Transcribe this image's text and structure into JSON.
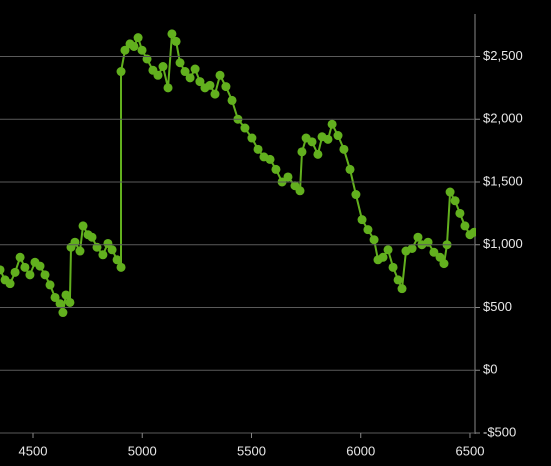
{
  "chart_data": {
    "type": "line",
    "x": [
      4349,
      4372,
      4395,
      4418,
      4441,
      4463,
      4486,
      4509,
      4532,
      4555,
      4578,
      4601,
      4624,
      4637,
      4651,
      4669,
      4674,
      4692,
      4715,
      4729,
      4752,
      4770,
      4793,
      4820,
      4843,
      4862,
      4885,
      4903,
      4903,
      4921,
      4944,
      4962,
      4981,
      4999,
      5022,
      5049,
      5072,
      5095,
      5118,
      5136,
      5155,
      5173,
      5196,
      5219,
      5242,
      5264,
      5287,
      5310,
      5333,
      5356,
      5383,
      5411,
      5438,
      5470,
      5502,
      5530,
      5557,
      5585,
      5612,
      5640,
      5667,
      5699,
      5722,
      5731,
      5750,
      5777,
      5804,
      5823,
      5850,
      5869,
      5896,
      5923,
      5951,
      5978,
      6006,
      6033,
      6061,
      6079,
      6102,
      6125,
      6148,
      6171,
      6189,
      6207,
      6235,
      6262,
      6280,
      6308,
      6335,
      6363,
      6381,
      6395,
      6409,
      6432,
      6454,
      6477,
      6500,
      6519
    ],
    "series": [
      {
        "color": "#62b01e",
        "values": [
          800,
          720,
          690,
          780,
          900,
          820,
          760,
          860,
          830,
          760,
          680,
          580,
          530,
          460,
          600,
          540,
          980,
          1020,
          950,
          1150,
          1080,
          1060,
          980,
          920,
          1010,
          960,
          880,
          820,
          2380,
          2550,
          2600,
          2580,
          2650,
          2550,
          2480,
          2390,
          2350,
          2420,
          2250,
          2680,
          2620,
          2450,
          2380,
          2330,
          2400,
          2300,
          2250,
          2270,
          2200,
          2350,
          2260,
          2150,
          2000,
          1930,
          1850,
          1760,
          1700,
          1680,
          1600,
          1500,
          1540,
          1470,
          1430,
          1740,
          1850,
          1820,
          1720,
          1860,
          1840,
          1960,
          1870,
          1760,
          1600,
          1400,
          1200,
          1120,
          1040,
          880,
          900,
          960,
          820,
          720,
          650,
          950,
          970,
          1060,
          1000,
          1020,
          940,
          900,
          850,
          1000,
          1420,
          1350,
          1250,
          1150,
          1080,
          1100
        ]
      }
    ],
    "xlim": [
      4349,
      6523
    ],
    "xticks": [
      4500,
      5000,
      5500,
      6000,
      6500
    ],
    "ylim": [
      -500,
      2950
    ],
    "yticks": [
      {
        "value": -500,
        "label": "-$500"
      },
      {
        "value": 0,
        "label": "$0"
      },
      {
        "value": 500,
        "label": "$500"
      },
      {
        "value": 1000,
        "label": "$1,000"
      },
      {
        "value": 1500,
        "label": "$1,500"
      },
      {
        "value": 2000,
        "label": "$2,000"
      },
      {
        "value": 2500,
        "label": "$2,500"
      }
    ],
    "grid": true
  }
}
